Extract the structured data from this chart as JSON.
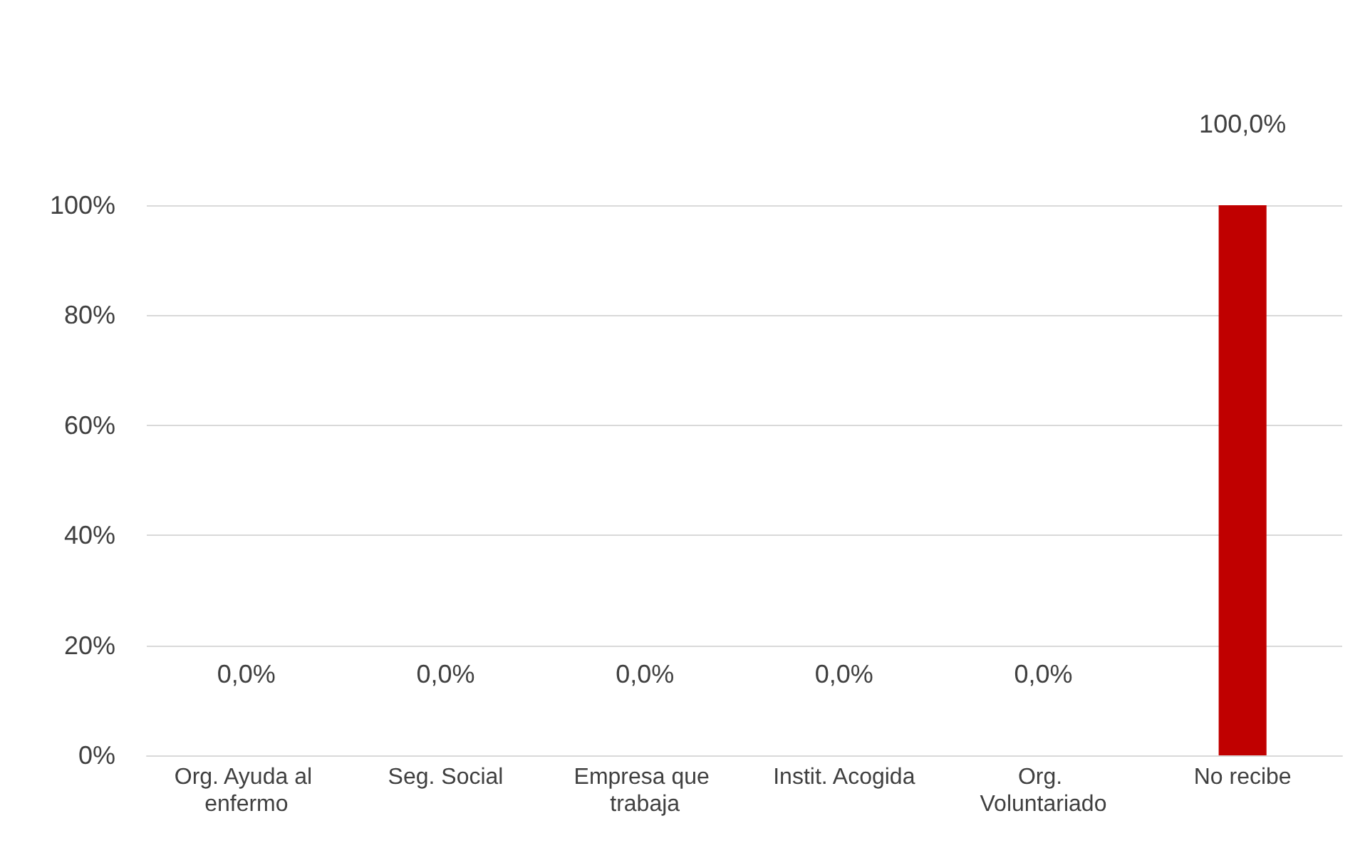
{
  "chart_data": {
    "type": "bar",
    "categories": [
      "Org. Ayuda al enfermo",
      "Seg. Social",
      "Empresa que trabaja",
      "Instit. Acogida",
      "Org. Voluntariado",
      "No recibe"
    ],
    "values": [
      0,
      0,
      0,
      0,
      0,
      100
    ],
    "value_labels": [
      "0,0%",
      "0,0%",
      "0,0%",
      "0,0%",
      "0,0%",
      "100,0%"
    ],
    "color": "#c00000",
    "ylim": [
      0,
      100
    ],
    "yticks": [
      {
        "value": 0,
        "label": "0%"
      },
      {
        "value": 20,
        "label": "20%"
      },
      {
        "value": 40,
        "label": "40%"
      },
      {
        "value": 60,
        "label": "60%"
      },
      {
        "value": 80,
        "label": "80%"
      },
      {
        "value": 100,
        "label": "100%"
      }
    ],
    "grid": "y"
  }
}
